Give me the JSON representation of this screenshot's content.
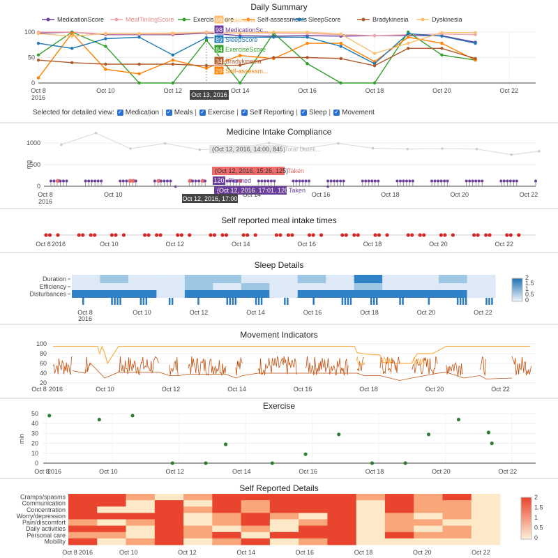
{
  "titles": {
    "daily": "Daily Summary",
    "medicine": "Medicine Intake Compliance",
    "meal": "Self reported meal intake times",
    "sleep": "Sleep Details",
    "movement": "Movement Indicators",
    "exercise": "Exercise",
    "selfreport": "Self Reported Details"
  },
  "selector": {
    "label": "Selected for detailed view:",
    "items": [
      "Medication",
      "Meals",
      "Exercise",
      "Self Reporting",
      "Sleep",
      "Movement"
    ]
  },
  "colors": {
    "medication": "#6a3d9a",
    "mealtiming": "#f4a3a8",
    "exercise": "#33a02c",
    "selfassess": "#ff7f00",
    "sleep": "#1f78b4",
    "brady": "#b15928",
    "dysk": "#fdbf6f",
    "meal_dot": "#d62728",
    "exercise_dot": "#2e7d32"
  },
  "xaxis": {
    "ticks": [
      "Oct 8",
      "Oct 10",
      "Oct 12",
      "Oct 14",
      "Oct 16",
      "Oct 18",
      "Oct 20",
      "Oct 22"
    ],
    "year": "2016"
  },
  "chart_data": [
    {
      "id": "daily",
      "type": "line",
      "title": "Daily Summary",
      "x": [
        "Oct 8",
        "Oct 9",
        "Oct 10",
        "Oct 11",
        "Oct 12",
        "Oct 13",
        "Oct 14",
        "Oct 15",
        "Oct 16",
        "Oct 17",
        "Oct 18",
        "Oct 19",
        "Oct 20",
        "Oct 21"
      ],
      "ylim": [
        0,
        100
      ],
      "yticks": [
        "0",
        "50",
        "100"
      ],
      "legend_labels": [
        "MedicationScore",
        "MealTimingScore",
        "ExerciseScore",
        "Self-assessments",
        "SleepScore",
        "Bradykinesia",
        "Dyskinesia"
      ],
      "series": [
        {
          "name": "MedicationScore",
          "key": "medication",
          "values": [
            98,
            100,
            95,
            95,
            95,
            98,
            93,
            92,
            93,
            92,
            93,
            93,
            93,
            80
          ]
        },
        {
          "name": "MealTimingScore",
          "key": "mealtiming",
          "values": [
            100,
            100,
            96,
            96,
            96,
            100,
            98,
            98,
            97,
            95,
            93,
            95,
            96,
            95
          ]
        },
        {
          "name": "ExerciseScore",
          "key": "exercise",
          "values": [
            55,
            100,
            72,
            0,
            0,
            84,
            0,
            98,
            38,
            0,
            0,
            100,
            55,
            45
          ]
        },
        {
          "name": "Self-assessments",
          "key": "selfassess",
          "values": [
            10,
            98,
            27,
            18,
            45,
            29,
            54,
            48,
            78,
            78,
            42,
            90,
            78,
            45
          ]
        },
        {
          "name": "SleepScore",
          "key": "sleep",
          "values": [
            78,
            68,
            87,
            90,
            55,
            89,
            90,
            90,
            90,
            72,
            38,
            97,
            92,
            78
          ]
        },
        {
          "name": "Bradykinesia",
          "key": "brady",
          "values": [
            45,
            40,
            37,
            37,
            37,
            34,
            35,
            50,
            50,
            48,
            34,
            68,
            68,
            48
          ]
        },
        {
          "name": "Dyskinesia",
          "key": "dysk",
          "values": [
            97,
            92,
            97,
            97,
            98,
            99,
            98,
            100,
            100,
            96,
            58,
            78,
            99,
            99
          ]
        }
      ],
      "hover": {
        "date": "Oct 13, 2016",
        "items": [
          {
            "value": "99",
            "label": "Dyskinesia",
            "key": "dysk"
          },
          {
            "value": "98",
            "label": "MedicationSc...",
            "key": "medication"
          },
          {
            "value": "89",
            "label": "SleepScore",
            "key": "sleep"
          },
          {
            "value": "84",
            "label": "ExerciseScore",
            "key": "exercise"
          },
          {
            "value": "34",
            "label": "Bradykinesia",
            "key": "brady"
          },
          {
            "value": "29",
            "label": "Self-assessm...",
            "key": "selfassess"
          }
        ]
      }
    },
    {
      "id": "medicine",
      "type": "scatter",
      "title": "Medicine Intake Compliance",
      "ylabel": "mg",
      "yticks": [
        "0",
        "500",
        "1000"
      ],
      "ylim": [
        0,
        1300
      ],
      "total_daily": {
        "x": [
          8.5,
          9.5,
          10.5,
          11.5,
          12.5,
          13.5,
          14.5,
          15.5,
          16.5,
          17.5,
          18.5,
          19.5,
          20.5,
          21.5,
          22.3
        ],
        "values": [
          960,
          1230,
          870,
          990,
          845,
          870,
          1000,
          870,
          990,
          880,
          860,
          870,
          860,
          730,
          810
        ]
      },
      "hover_total": "(Oct 12, 2016, 14:00, 845)",
      "hover_total_label": "Total Dateli...",
      "hover_taken": "(Oct 12, 2016, 15:26, 125)",
      "hover_taken_label": "Taken",
      "hover_planned_value": "120",
      "hover_planned_label": "Planned",
      "hover_taken2": "(Oct 12, 2016, 17:01, 120)",
      "hover_taken2_label": "Taken",
      "x_hover": "Oct 12, 2016, 17:00"
    },
    {
      "id": "meal",
      "type": "scatter",
      "title": "Self reported meal intake times",
      "days": [
        8,
        9,
        10,
        11,
        12,
        13,
        14,
        15,
        16,
        17,
        18,
        19,
        20,
        21,
        22
      ]
    },
    {
      "id": "sleep",
      "type": "heatmap",
      "title": "Sleep Details",
      "rows": [
        "Duration",
        "Efficiency",
        "Disturbances"
      ],
      "colorscale_ticks": [
        "2",
        "1.5",
        "1",
        "0.5",
        "0"
      ],
      "zlim": [
        0,
        2
      ]
    },
    {
      "id": "movement",
      "type": "line",
      "title": "Movement Indicators",
      "yticks": [
        "20",
        "40",
        "60",
        "80",
        "100"
      ],
      "ylim": [
        20,
        100
      ]
    },
    {
      "id": "exercise",
      "type": "scatter",
      "title": "Exercise",
      "ylabel": "min",
      "yticks": [
        "0",
        "10",
        "20",
        "30",
        "40",
        "50"
      ],
      "ylim": [
        0,
        50
      ],
      "x": [
        8.1,
        9.6,
        10.6,
        11.8,
        12.8,
        13.4,
        14.8,
        15.8,
        16.8,
        17.8,
        18.8,
        19.5,
        20.4,
        21.3,
        21.4
      ],
      "values": [
        48,
        44,
        48,
        0,
        0,
        19,
        0,
        9,
        29,
        0,
        0,
        29,
        44,
        31,
        20
      ]
    },
    {
      "id": "selfreport",
      "type": "heatmap",
      "title": "Self Reported Details",
      "rows": [
        "Cramps/spasms",
        "Communication",
        "Concentration",
        "Worry/depression",
        "Pain/discomfort",
        "Daily activities",
        "Personal care",
        "Mobility"
      ],
      "colorscale_ticks": [
        "2",
        "1.5",
        "1",
        "0.5",
        "0"
      ],
      "zlim": [
        0,
        2
      ]
    }
  ]
}
